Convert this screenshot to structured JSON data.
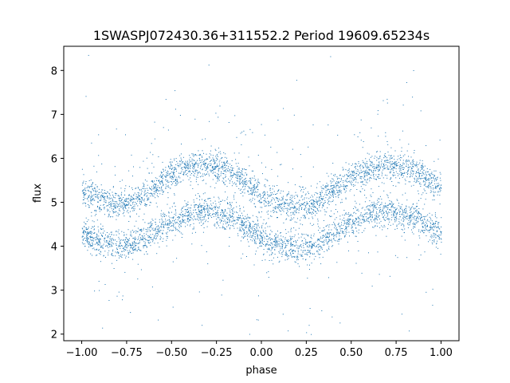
{
  "chart_data": {
    "type": "scatter",
    "title": "1SWASPJ072430.36+311552.2 Period 19609.65234s",
    "xlabel": "phase",
    "ylabel": "flux",
    "xlim": [
      -1.1,
      1.1
    ],
    "ylim": [
      1.85,
      8.55
    ],
    "xticks": [
      -1.0,
      -0.75,
      -0.5,
      -0.25,
      0.0,
      0.25,
      0.5,
      0.75,
      1.0
    ],
    "xtick_labels": [
      "−1.00",
      "−0.75",
      "−0.50",
      "−0.25",
      "0.00",
      "0.25",
      "0.50",
      "0.75",
      "1.00"
    ],
    "yticks": [
      2,
      3,
      4,
      5,
      6,
      7,
      8
    ],
    "ytick_labels": [
      "2",
      "3",
      "4",
      "5",
      "6",
      "7",
      "8"
    ],
    "grid": false,
    "legend": "none",
    "marker_color": "#1f77b4",
    "series": [
      {
        "band": "upper",
        "phase": [
          -1.0,
          -0.9,
          -0.8,
          -0.7,
          -0.6,
          -0.5,
          -0.4,
          -0.3,
          -0.2,
          -0.1,
          0.0,
          0.1,
          0.2,
          0.3,
          0.4,
          0.5,
          0.6,
          0.7,
          0.8,
          0.9,
          1.0
        ],
        "flux": [
          5.3,
          5.05,
          4.95,
          5.05,
          5.35,
          5.6,
          5.8,
          5.85,
          5.75,
          5.5,
          5.15,
          4.95,
          4.9,
          5.0,
          5.3,
          5.55,
          5.75,
          5.85,
          5.8,
          5.6,
          5.3
        ]
      },
      {
        "band": "lower",
        "phase": [
          -1.0,
          -0.9,
          -0.8,
          -0.7,
          -0.6,
          -0.5,
          -0.4,
          -0.3,
          -0.2,
          -0.1,
          0.0,
          0.1,
          0.2,
          0.3,
          0.4,
          0.5,
          0.6,
          0.7,
          0.8,
          0.9,
          1.0
        ],
        "flux": [
          4.3,
          4.1,
          4.0,
          4.1,
          4.35,
          4.55,
          4.75,
          4.8,
          4.7,
          4.5,
          4.2,
          4.0,
          3.95,
          4.05,
          4.3,
          4.55,
          4.75,
          4.8,
          4.75,
          4.55,
          4.3
        ]
      }
    ]
  }
}
